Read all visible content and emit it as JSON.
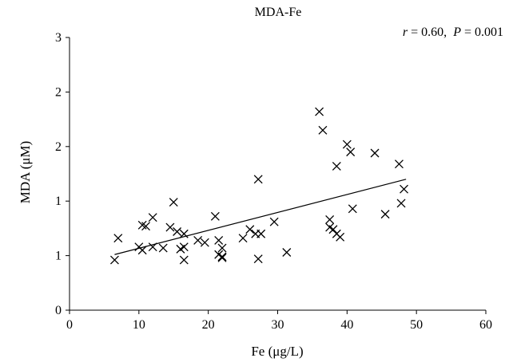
{
  "chart_data": {
    "type": "scatter",
    "title": "MDA-Fe",
    "annotation": {
      "r_label": "r",
      "r_value": " = 0.60,  ",
      "p_label": "P",
      "p_value": " = 0.001"
    },
    "xlabel": "Fe (μg/L)",
    "ylabel": "MDA (μM)",
    "xlim": [
      0,
      60
    ],
    "ylim": [
      0,
      2.5
    ],
    "x_ticks": [
      0,
      10,
      20,
      30,
      40,
      50,
      60
    ],
    "y_tick_values": [
      0,
      0.5,
      1,
      1.5,
      2,
      2.5
    ],
    "y_tick_labels": [
      "0",
      "1",
      "1",
      "2",
      "2",
      "3"
    ],
    "marker": "x",
    "grid": false,
    "legend": "none",
    "series": [
      {
        "points": [
          [
            6.5,
            0.46
          ],
          [
            7,
            0.66
          ],
          [
            10,
            0.58
          ],
          [
            10.5,
            0.55
          ],
          [
            10.5,
            0.78
          ],
          [
            11,
            0.77
          ],
          [
            12,
            0.58
          ],
          [
            12,
            0.85
          ],
          [
            13.5,
            0.57
          ],
          [
            14.5,
            0.76
          ],
          [
            15,
            0.99
          ],
          [
            15.5,
            0.72
          ],
          [
            16,
            0.56
          ],
          [
            16.5,
            0.46
          ],
          [
            16.5,
            0.7
          ],
          [
            16.5,
            0.58
          ],
          [
            18.5,
            0.64
          ],
          [
            19.5,
            0.62
          ],
          [
            21,
            0.86
          ],
          [
            21.5,
            0.51
          ],
          [
            21.5,
            0.64
          ],
          [
            22,
            0.48
          ],
          [
            22,
            0.57
          ],
          [
            22,
            0.49
          ],
          [
            25,
            0.66
          ],
          [
            26,
            0.74
          ],
          [
            26.8,
            0.7
          ],
          [
            27.2,
            0.47
          ],
          [
            27.2,
            1.2
          ],
          [
            27.6,
            0.7
          ],
          [
            29.5,
            0.81
          ],
          [
            31.3,
            0.53
          ],
          [
            36,
            1.82
          ],
          [
            36.5,
            1.65
          ],
          [
            37.5,
            0.83
          ],
          [
            37.5,
            0.76
          ],
          [
            38,
            0.74
          ],
          [
            38.5,
            0.7
          ],
          [
            38.5,
            1.32
          ],
          [
            39,
            0.67
          ],
          [
            40,
            1.52
          ],
          [
            40.5,
            1.45
          ],
          [
            40.8,
            0.93
          ],
          [
            44,
            1.44
          ],
          [
            45.5,
            0.88
          ],
          [
            47.5,
            1.34
          ],
          [
            47.8,
            0.98
          ],
          [
            48.2,
            1.11
          ]
        ]
      }
    ],
    "trendline": {
      "x": [
        6.5,
        48.5
      ],
      "y": [
        0.51,
        1.2
      ]
    }
  }
}
